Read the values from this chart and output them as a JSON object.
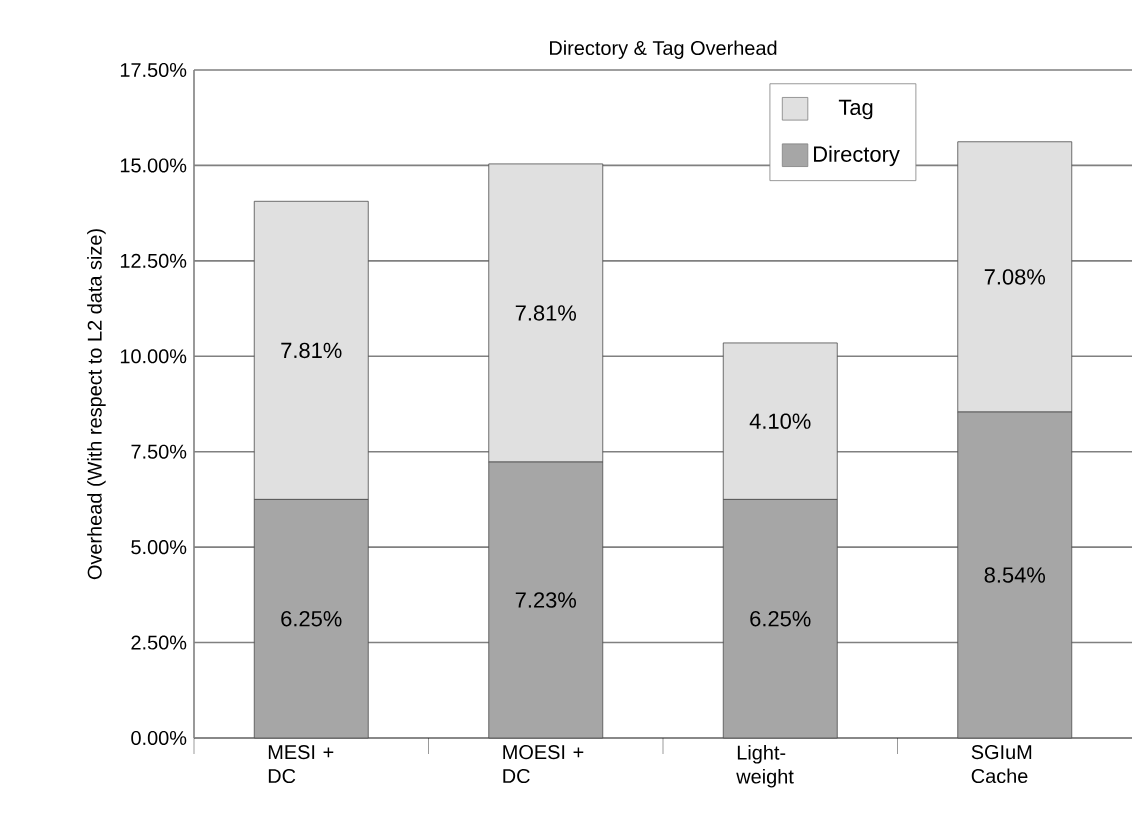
{
  "chart_data": {
    "type": "bar",
    "stacked": true,
    "title": "Directory & Tag Overhead",
    "ylabel": "Overhead (With respect to L2 data size)",
    "categories": [
      "MESI + DC",
      "MOESI + DC",
      "Light-weight",
      "SGIuM Cache"
    ],
    "series": [
      {
        "name": "Directory",
        "color": "#a6a6a6",
        "values": [
          6.25,
          7.23,
          6.25,
          8.54
        ],
        "value_labels": [
          "6.25%",
          "7.23%",
          "6.25%",
          "8.54%"
        ]
      },
      {
        "name": "Tag",
        "color": "#e0e0e0",
        "values": [
          7.81,
          7.81,
          4.1,
          7.08
        ],
        "value_labels": [
          "7.81%",
          "7.81%",
          "4.10%",
          "7.08%"
        ]
      }
    ],
    "ylim": [
      0,
      17.5
    ],
    "yticks": [
      {
        "value": 0,
        "label": "0.00%"
      },
      {
        "value": 2.5,
        "label": "2.50%"
      },
      {
        "value": 5,
        "label": "5.00%"
      },
      {
        "value": 7.5,
        "label": "7.50%"
      },
      {
        "value": 10,
        "label": "10.00%"
      },
      {
        "value": 12.5,
        "label": "12.50%"
      },
      {
        "value": 15,
        "label": "15.00%"
      },
      {
        "value": 17.5,
        "label": "17.50%"
      }
    ],
    "grid": "y",
    "legend": "top right"
  }
}
